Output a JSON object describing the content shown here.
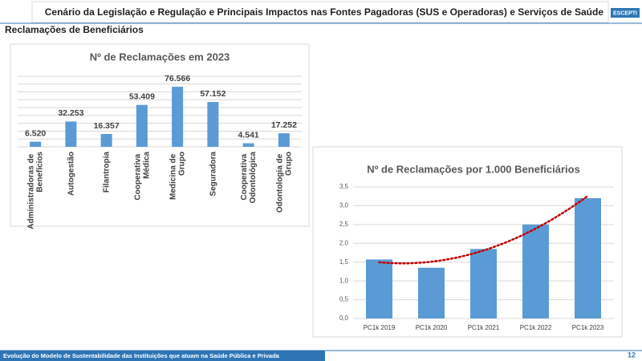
{
  "header": {
    "title": "Cenário da Legislação e Regulação e Principais Impactos nas Fontes Pagadoras (SUS e Operadoras) e Serviços de Saúde",
    "logo": "ESCEPTI"
  },
  "subtitle": "Reclamações de Beneficiários",
  "footer": {
    "text": "Evolução do Modelo de Sustentabilidade das Instituições que atuam na Saúde Pública e Privada",
    "page": "12"
  },
  "chart_data": [
    {
      "type": "bar",
      "title": "Nº de Reclamações em 2023",
      "categories": [
        "Administradoras de Benefícios",
        "Autogestão",
        "Filantropia",
        "Cooperativa Médica",
        "Medicina de Grupo",
        "Seguradora",
        "Cooperativa Odontológica",
        "Odontologia de Grupo"
      ],
      "values": [
        6520,
        32253,
        16357,
        53409,
        76566,
        57152,
        4541,
        17252
      ],
      "value_labels": [
        "6.520",
        "32.253",
        "16.357",
        "53.409",
        "76.566",
        "57.152",
        "4.541",
        "17.252"
      ],
      "color": "#5b9bd5",
      "ylim": [
        0,
        90000
      ],
      "yticks": [
        0,
        10000,
        20000,
        30000,
        40000,
        50000,
        60000,
        70000,
        80000,
        90000
      ],
      "show_ytick_labels": false,
      "grid": true
    },
    {
      "type": "bar",
      "title": "Nº de Reclamações por 1.000 Beneficiários",
      "categories": [
        "PC1k 2019",
        "PC1k 2020",
        "PC1k 2021",
        "PC1k 2022",
        "PC1k 2023"
      ],
      "values": [
        1.57,
        1.35,
        1.85,
        2.5,
        3.2
      ],
      "color": "#5b9bd5",
      "ylim": [
        0,
        3.5
      ],
      "yticks": [
        {
          "value": 0,
          "label": "0,0"
        },
        {
          "value": 0.5,
          "label": "0,5"
        },
        {
          "value": 1,
          "label": "1,0"
        },
        {
          "value": 1.5,
          "label": "1,5"
        },
        {
          "value": 2,
          "label": "2,0"
        },
        {
          "value": 2.5,
          "label": "2,5"
        },
        {
          "value": 3,
          "label": "3,0"
        },
        {
          "value": 3.5,
          "label": "3,5"
        }
      ],
      "show_ytick_labels": true,
      "grid": true,
      "trendline": "polynomial",
      "trendline_color": "#c00000"
    }
  ]
}
